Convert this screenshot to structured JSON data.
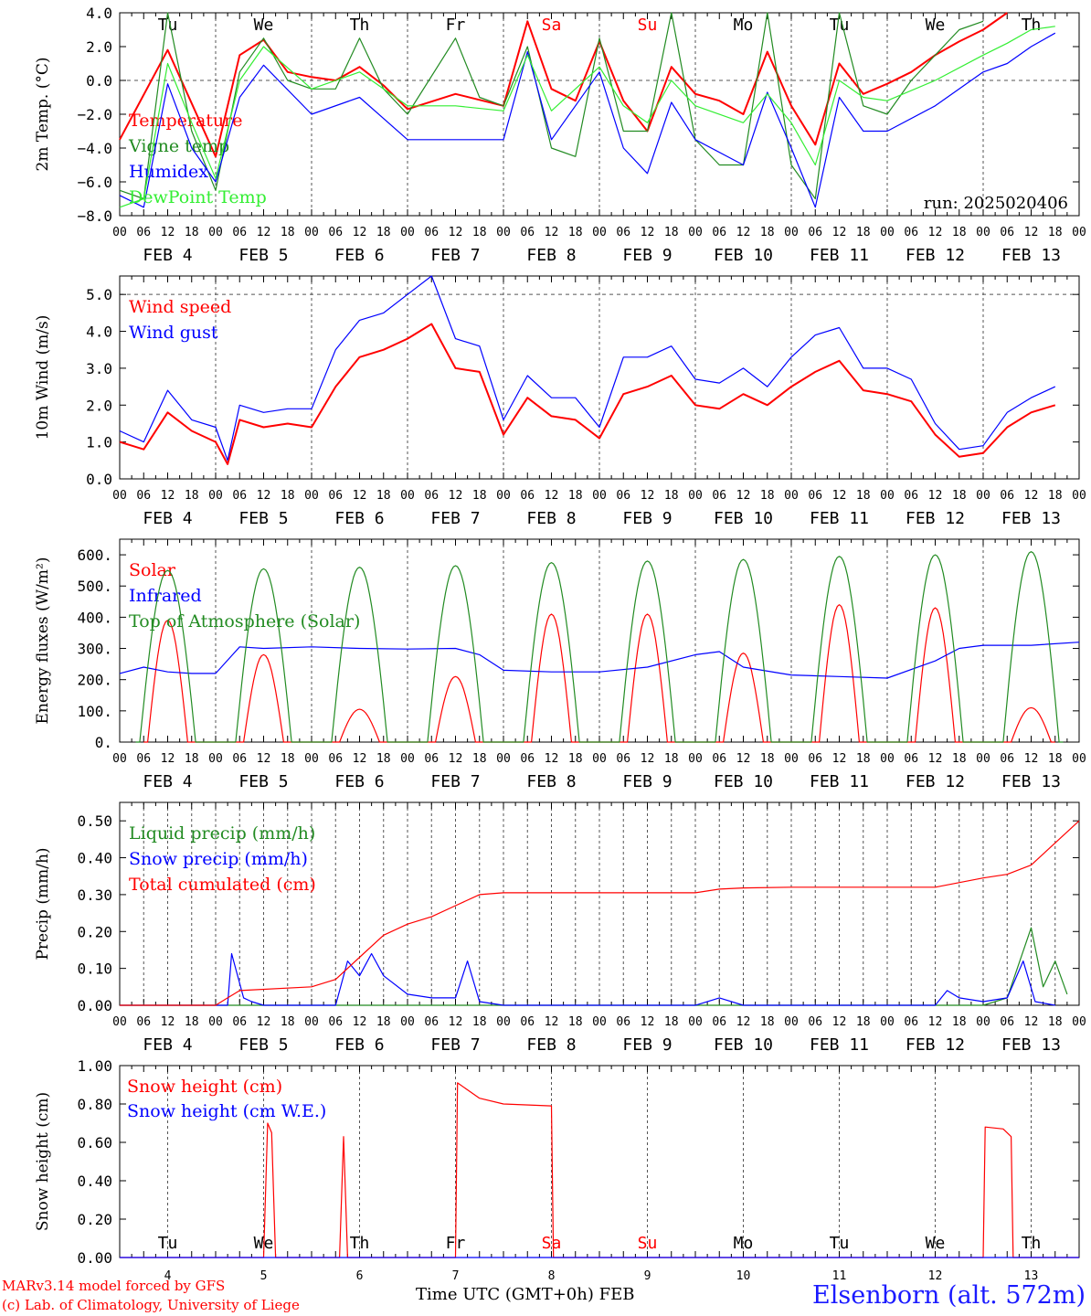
{
  "run_label": "run: 2025020406",
  "footer": {
    "credit_line1": "MARv3.14 model forced by GFS",
    "credit_line2": "(c) Lab. of Climatology, University of Liege",
    "x_axis_title": "Time UTC (GMT+0h) FEB",
    "station": "Elsenborn (alt. 572m)"
  },
  "time_axis": {
    "start": "2025-02-04T00:00Z",
    "end": "2025-02-14T00:00Z",
    "hour_ticks": [
      "00",
      "06",
      "12",
      "18"
    ],
    "final_tick": "00",
    "date_labels": [
      "FEB  4",
      "FEB  5",
      "FEB  6",
      "FEB  7",
      "FEB  8",
      "FEB  9",
      "FEB 10",
      "FEB 11",
      "FEB 12",
      "FEB 13"
    ],
    "day_names": [
      "Tu",
      "We",
      "Th",
      "Fr",
      "Sa",
      "Su",
      "Mo",
      "Tu",
      "We",
      "Th"
    ],
    "day_name_colors": [
      "#000000",
      "#000000",
      "#000000",
      "#000000",
      "#ff0000",
      "#ff0000",
      "#000000",
      "#000000",
      "#000000",
      "#000000"
    ],
    "day_numbers": [
      "4",
      "5",
      "6",
      "7",
      "8",
      "9",
      "10",
      "11",
      "12",
      "13"
    ]
  },
  "chart_data": [
    {
      "type": "line",
      "ylabel": "2m Temp. (°C)",
      "ylim": [
        -8,
        4
      ],
      "ytick_values": [
        -8,
        -6,
        -4,
        -2,
        0,
        2,
        4
      ],
      "ytick_labels": [
        "−8.0",
        "−6.0",
        "−4.0",
        "−2.0",
        "0.0",
        "2.0",
        "4.0"
      ],
      "dashed_reference_y": 0,
      "grid": "dotted vertical at 00 UTC",
      "legend_position": "left",
      "series": [
        {
          "name": "Temperature",
          "color": "#ff0000",
          "x": [
            0,
            12,
            24,
            30,
            36,
            42,
            48,
            54,
            60,
            66,
            72,
            84,
            96,
            102,
            108,
            114,
            120,
            126,
            132,
            138,
            144,
            150,
            156,
            162,
            168,
            174,
            180,
            186,
            192,
            198,
            204,
            210,
            216,
            222,
            228,
            234,
            240
          ],
          "y": [
            -3.5,
            1.8,
            -4.5,
            1.5,
            2.4,
            0.5,
            0.2,
            0.0,
            0.8,
            -0.3,
            -1.7,
            -0.8,
            -1.5,
            3.5,
            -0.5,
            -1.2,
            2.3,
            -1.2,
            -3.0,
            0.8,
            -0.8,
            -1.2,
            -2.0,
            1.7,
            -1.5,
            -3.8,
            1.0,
            -0.8,
            -0.2,
            0.5,
            1.5,
            2.3,
            3.0,
            4.0,
            null,
            null,
            null
          ]
        },
        {
          "name": "Vigne temp",
          "color": "#228b22",
          "x": [
            0,
            6,
            12,
            18,
            24,
            30,
            36,
            42,
            48,
            54,
            60,
            66,
            72,
            84,
            90,
            96,
            102,
            108,
            114,
            120,
            126,
            132,
            138,
            144,
            150,
            156,
            162,
            168,
            174,
            180,
            186,
            192,
            198,
            204,
            210,
            216,
            222,
            228,
            234,
            240
          ],
          "y": [
            -6.5,
            -7.0,
            4.0,
            -3.0,
            -6.5,
            0.5,
            2.5,
            0.0,
            -0.5,
            -0.5,
            2.5,
            -0.5,
            -2.0,
            2.5,
            -1.0,
            -1.5,
            2.0,
            -4.0,
            -4.5,
            2.5,
            -3.0,
            -3.0,
            4.0,
            -3.5,
            -5.0,
            -5.0,
            4.0,
            -5.0,
            -7.0,
            4.0,
            -1.5,
            -2.0,
            0.0,
            1.5,
            3.0,
            3.5,
            null,
            null,
            null,
            null
          ]
        },
        {
          "name": "Humidex",
          "color": "#0000ff",
          "x": [
            0,
            6,
            12,
            18,
            24,
            30,
            36,
            48,
            60,
            72,
            84,
            96,
            102,
            108,
            120,
            126,
            132,
            138,
            144,
            156,
            162,
            168,
            174,
            180,
            186,
            192,
            204,
            216,
            222,
            228,
            234,
            240
          ],
          "y": [
            -6.8,
            -7.5,
            -0.2,
            -4.0,
            -6.0,
            -1.0,
            0.9,
            -2.0,
            -1.0,
            -3.5,
            -3.5,
            -3.5,
            1.7,
            -3.5,
            0.5,
            -4.0,
            -5.5,
            -1.3,
            -3.5,
            -5.0,
            -0.7,
            -4.0,
            -7.5,
            -1.0,
            -3.0,
            -3.0,
            -1.5,
            0.5,
            1.0,
            2.0,
            2.8,
            null
          ]
        },
        {
          "name": "DewPoint Temp",
          "color": "#33ee33",
          "x": [
            0,
            6,
            12,
            18,
            24,
            30,
            36,
            48,
            60,
            72,
            84,
            96,
            102,
            108,
            120,
            126,
            132,
            138,
            144,
            156,
            162,
            168,
            174,
            180,
            186,
            192,
            204,
            216,
            222,
            228,
            234,
            240
          ],
          "y": [
            -7.5,
            -7.0,
            1.0,
            -2.5,
            -5.8,
            0.0,
            2.0,
            -0.5,
            0.5,
            -1.5,
            -1.5,
            -1.8,
            1.5,
            -1.8,
            0.8,
            -1.5,
            -2.5,
            0.0,
            -1.5,
            -2.5,
            -0.8,
            -2.5,
            -5.0,
            0.0,
            -1.0,
            -1.2,
            0.0,
            1.5,
            2.2,
            3.0,
            3.2,
            null
          ]
        }
      ]
    },
    {
      "type": "line",
      "ylabel": "10m Wind (m/s)",
      "ylim": [
        0,
        5.5
      ],
      "ytick_values": [
        0,
        1,
        2,
        3,
        4,
        5
      ],
      "ytick_labels": [
        "0.0",
        "1.0",
        "2.0",
        "3.0",
        "4.0",
        "5.0"
      ],
      "dashed_reference_y": 5,
      "grid": "dotted vertical at 00 UTC",
      "legend_position": "left",
      "series": [
        {
          "name": "Wind speed",
          "color": "#ff0000",
          "x": [
            0,
            6,
            12,
            18,
            24,
            27,
            30,
            36,
            42,
            48,
            54,
            60,
            66,
            72,
            78,
            84,
            90,
            96,
            102,
            108,
            114,
            120,
            126,
            132,
            138,
            144,
            150,
            156,
            162,
            168,
            174,
            180,
            186,
            192,
            198,
            204,
            210,
            216,
            222,
            228,
            234,
            240
          ],
          "y": [
            1.0,
            0.8,
            1.8,
            1.3,
            1.0,
            0.4,
            1.6,
            1.4,
            1.5,
            1.4,
            2.5,
            3.3,
            3.5,
            3.8,
            4.2,
            3.0,
            2.9,
            1.2,
            2.2,
            1.7,
            1.6,
            1.1,
            2.3,
            2.5,
            2.8,
            2.0,
            1.9,
            2.3,
            2.0,
            2.5,
            2.9,
            3.2,
            2.4,
            2.3,
            2.1,
            1.2,
            0.6,
            0.7,
            1.4,
            1.8,
            2.0,
            null
          ]
        },
        {
          "name": "Wind gust",
          "color": "#0000ff",
          "x": [
            0,
            6,
            12,
            18,
            24,
            27,
            30,
            36,
            42,
            48,
            54,
            60,
            66,
            72,
            78,
            84,
            90,
            96,
            102,
            108,
            114,
            120,
            126,
            132,
            138,
            144,
            150,
            156,
            162,
            168,
            174,
            180,
            186,
            192,
            198,
            204,
            210,
            216,
            222,
            228,
            234,
            240
          ],
          "y": [
            1.3,
            1.0,
            2.4,
            1.6,
            1.4,
            0.5,
            2.0,
            1.8,
            1.9,
            1.9,
            3.5,
            4.3,
            4.5,
            5.0,
            5.5,
            3.8,
            3.6,
            1.6,
            2.8,
            2.2,
            2.2,
            1.4,
            3.3,
            3.3,
            3.6,
            2.7,
            2.6,
            3.0,
            2.5,
            3.3,
            3.9,
            4.1,
            3.0,
            3.0,
            2.7,
            1.5,
            0.8,
            0.9,
            1.8,
            2.2,
            2.5,
            null
          ]
        }
      ]
    },
    {
      "type": "line",
      "ylabel": "Energy fluxes (W/m²)",
      "ylim": [
        0,
        650
      ],
      "ytick_values": [
        0,
        100,
        200,
        300,
        400,
        500,
        600
      ],
      "ytick_labels": [
        "0.",
        "100.",
        "200.",
        "300.",
        "400.",
        "500.",
        "600."
      ],
      "grid": "dotted vertical at 00 UTC",
      "legend_position": "left",
      "daily_peaks": {
        "solar_peak_hour_offset": 12,
        "Solar": [
          390,
          280,
          105,
          210,
          410,
          410,
          285,
          440,
          430,
          110
        ],
        "Top of Atmosphere (Solar)": [
          550,
          555,
          560,
          565,
          575,
          580,
          585,
          595,
          600,
          610
        ]
      },
      "series": [
        {
          "name": "Solar",
          "color": "#ff0000",
          "x": [],
          "y": []
        },
        {
          "name": "Infrared",
          "color": "#0000ff",
          "x": [
            0,
            6,
            12,
            18,
            24,
            30,
            36,
            48,
            60,
            72,
            84,
            90,
            96,
            108,
            120,
            132,
            144,
            150,
            156,
            168,
            180,
            192,
            204,
            210,
            216,
            228,
            240
          ],
          "y": [
            220,
            240,
            225,
            220,
            220,
            305,
            300,
            305,
            300,
            298,
            300,
            280,
            230,
            225,
            225,
            240,
            280,
            290,
            240,
            215,
            210,
            205,
            260,
            300,
            310,
            310,
            320
          ]
        },
        {
          "name": "Top of Atmosphere (Solar)",
          "color": "#228b22",
          "x": [],
          "y": []
        }
      ]
    },
    {
      "type": "line",
      "ylabel": "Precip (mm/h)",
      "ylim": [
        0,
        0.55
      ],
      "ytick_values": [
        0,
        0.1,
        0.2,
        0.3,
        0.4,
        0.5
      ],
      "ytick_labels": [
        "0.00",
        "0.10",
        "0.20",
        "0.30",
        "0.40",
        "0.50"
      ],
      "grid": "dotted vertical every 6 h",
      "legend_position": "left",
      "series": [
        {
          "name": "Liquid precip (mm/h)",
          "color": "#228b22",
          "x": [
            0,
            48,
            96,
            144,
            216,
            222,
            228,
            231,
            234,
            237,
            240
          ],
          "y": [
            0,
            0,
            0,
            0,
            0,
            0.02,
            0.21,
            0.05,
            0.12,
            0.03,
            null
          ]
        },
        {
          "name": "Snow precip (mm/h)",
          "color": "#0000ff",
          "x": [
            0,
            24,
            27,
            28,
            31,
            33,
            36,
            48,
            54,
            57,
            60,
            63,
            66,
            72,
            78,
            84,
            87,
            90,
            96,
            144,
            150,
            156,
            168,
            204,
            207,
            210,
            216,
            222,
            226,
            229,
            234,
            240
          ],
          "y": [
            0,
            0,
            0,
            0.14,
            0.02,
            0.01,
            0,
            0,
            0,
            0.12,
            0.08,
            0.14,
            0.08,
            0.03,
            0.02,
            0.02,
            0.12,
            0.01,
            0,
            0,
            0.02,
            0,
            0,
            0,
            0.04,
            0.02,
            0.01,
            0.02,
            0.12,
            0.01,
            0,
            null
          ]
        },
        {
          "name": "Total cumulated (cm)",
          "color": "#ff0000",
          "x": [
            0,
            24,
            27,
            30,
            48,
            54,
            60,
            66,
            72,
            78,
            84,
            90,
            96,
            144,
            150,
            156,
            168,
            204,
            216,
            222,
            228,
            240
          ],
          "y": [
            0,
            0,
            0.02,
            0.04,
            0.05,
            0.07,
            0.13,
            0.19,
            0.22,
            0.24,
            0.27,
            0.3,
            0.305,
            0.305,
            0.315,
            0.318,
            0.32,
            0.32,
            0.345,
            0.355,
            0.38,
            0.5
          ]
        }
      ]
    },
    {
      "type": "line",
      "ylabel": "Snow height (cm)",
      "ylim": [
        0,
        1
      ],
      "ytick_values": [
        0,
        0.2,
        0.4,
        0.6,
        0.8,
        1.0
      ],
      "ytick_labels": [
        "0.00",
        "0.20",
        "0.40",
        "0.60",
        "0.80",
        "1.00"
      ],
      "grid": "dotted vertical at 12 UTC",
      "legend_position": "left",
      "series": [
        {
          "name": "Snow height (cm)",
          "color": "#ff0000",
          "x": [
            0,
            36,
            37,
            38,
            39,
            55,
            56,
            57,
            84,
            84.5,
            90,
            96,
            108,
            108.5,
            109,
            216,
            216.5,
            221,
            223,
            223.5,
            240
          ],
          "y": [
            0,
            0,
            0.7,
            0.65,
            0,
            0,
            0.63,
            0,
            0,
            0.91,
            0.83,
            0.8,
            0.79,
            0,
            0,
            0,
            0.68,
            0.67,
            0.63,
            0,
            0
          ]
        },
        {
          "name": "Snow height (cm W.E.)",
          "color": "#0000ff",
          "x": [
            0,
            240
          ],
          "y": [
            0,
            0
          ]
        }
      ]
    }
  ]
}
